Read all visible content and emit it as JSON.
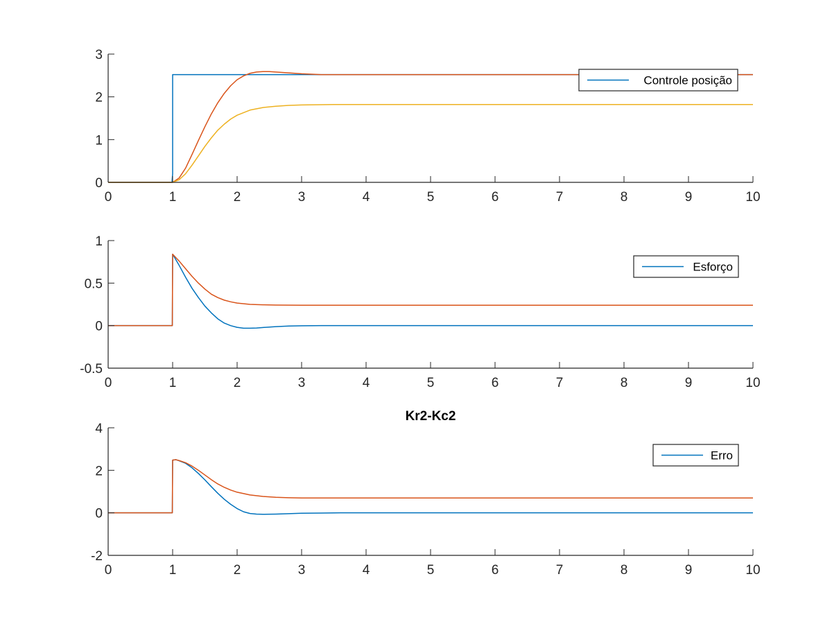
{
  "chart_data": [
    {
      "type": "line",
      "title": "",
      "xlim": [
        0,
        10
      ],
      "ylim": [
        0,
        3
      ],
      "xticks": [
        "0",
        "1",
        "2",
        "3",
        "4",
        "5",
        "6",
        "7",
        "8",
        "9",
        "10"
      ],
      "yticks": [
        "0",
        "1",
        "2",
        "3"
      ],
      "legend": {
        "placement": "top-right",
        "entries": [
          "Controle posição"
        ]
      },
      "series": [
        {
          "name": "Controle posição",
          "color": "#0072BD",
          "x": [
            0,
            0.99,
            1.0,
            1.0,
            10
          ],
          "y": [
            0,
            0,
            0.2,
            2.52,
            2.52
          ]
        },
        {
          "color": "#D95319",
          "x": [
            0,
            1.0,
            1.1,
            1.2,
            1.3,
            1.4,
            1.5,
            1.6,
            1.7,
            1.8,
            1.9,
            2.0,
            2.1,
            2.2,
            2.3,
            2.4,
            2.5,
            2.6,
            2.8,
            3.0,
            3.3,
            3.6,
            4.0,
            10
          ],
          "y": [
            0,
            0,
            0.1,
            0.33,
            0.65,
            0.98,
            1.3,
            1.6,
            1.86,
            2.08,
            2.26,
            2.4,
            2.49,
            2.55,
            2.58,
            2.59,
            2.59,
            2.58,
            2.56,
            2.54,
            2.52,
            2.52,
            2.52,
            2.52
          ]
        },
        {
          "color": "#EDB120",
          "x": [
            0,
            1.0,
            1.1,
            1.2,
            1.3,
            1.4,
            1.5,
            1.6,
            1.7,
            1.8,
            1.9,
            2.0,
            2.2,
            2.4,
            2.6,
            2.8,
            3.0,
            3.5,
            4.0,
            10
          ],
          "y": [
            0,
            0,
            0.06,
            0.2,
            0.4,
            0.62,
            0.84,
            1.04,
            1.22,
            1.36,
            1.48,
            1.57,
            1.69,
            1.75,
            1.78,
            1.8,
            1.81,
            1.82,
            1.82,
            1.82
          ]
        }
      ]
    },
    {
      "type": "line",
      "title": "",
      "xlim": [
        0,
        10
      ],
      "ylim": [
        -0.5,
        1
      ],
      "xticks": [
        "0",
        "1",
        "2",
        "3",
        "4",
        "5",
        "6",
        "7",
        "8",
        "9",
        "10"
      ],
      "yticks": [
        "-0.5",
        "0",
        "0.5",
        "1"
      ],
      "legend": {
        "placement": "top-right",
        "entries": [
          "Esforço"
        ]
      },
      "series": [
        {
          "name": "Esforço",
          "color": "#0072BD",
          "x": [
            0,
            0.995,
            1.0,
            1.1,
            1.2,
            1.3,
            1.4,
            1.5,
            1.6,
            1.7,
            1.8,
            1.9,
            2.0,
            2.1,
            2.2,
            2.3,
            2.4,
            2.6,
            2.8,
            3.0,
            3.3,
            3.6,
            10
          ],
          "y": [
            0,
            0,
            0.84,
            0.71,
            0.57,
            0.44,
            0.33,
            0.23,
            0.15,
            0.08,
            0.03,
            0.0,
            -0.02,
            -0.03,
            -0.03,
            -0.028,
            -0.022,
            -0.012,
            -0.005,
            -0.002,
            0.0,
            0.0,
            0.0
          ]
        },
        {
          "color": "#D95319",
          "x": [
            0,
            0.995,
            1.0,
            1.1,
            1.2,
            1.3,
            1.4,
            1.5,
            1.6,
            1.7,
            1.8,
            1.9,
            2.0,
            2.2,
            2.4,
            2.6,
            2.8,
            3.0,
            3.5,
            4.0,
            10
          ],
          "y": [
            0,
            0,
            0.84,
            0.76,
            0.67,
            0.58,
            0.5,
            0.43,
            0.37,
            0.33,
            0.3,
            0.28,
            0.265,
            0.25,
            0.245,
            0.242,
            0.241,
            0.24,
            0.24,
            0.24,
            0.24
          ]
        }
      ]
    },
    {
      "type": "line",
      "title": "Kr2-Kc2",
      "xlim": [
        0,
        10
      ],
      "ylim": [
        -2,
        4
      ],
      "xticks": [
        "0",
        "1",
        "2",
        "3",
        "4",
        "5",
        "6",
        "7",
        "8",
        "9",
        "10"
      ],
      "yticks": [
        "-2",
        "0",
        "2",
        "4"
      ],
      "legend": {
        "placement": "top-right",
        "entries": [
          "Erro"
        ]
      },
      "series": [
        {
          "name": "Erro",
          "color": "#0072BD",
          "x": [
            0,
            0.995,
            1.0,
            1.05,
            1.1,
            1.2,
            1.3,
            1.4,
            1.5,
            1.6,
            1.7,
            1.8,
            1.9,
            2.0,
            2.1,
            2.2,
            2.3,
            2.4,
            2.6,
            2.8,
            3.0,
            3.3,
            3.6,
            4.0,
            10
          ],
          "y": [
            0,
            0,
            2.48,
            2.5,
            2.45,
            2.33,
            2.12,
            1.85,
            1.55,
            1.23,
            0.92,
            0.64,
            0.4,
            0.2,
            0.05,
            -0.03,
            -0.06,
            -0.07,
            -0.06,
            -0.04,
            -0.02,
            -0.01,
            0.0,
            0.0,
            0.0
          ]
        },
        {
          "color": "#D95319",
          "x": [
            0,
            0.995,
            1.0,
            1.05,
            1.1,
            1.2,
            1.3,
            1.4,
            1.5,
            1.6,
            1.7,
            1.8,
            1.9,
            2.0,
            2.2,
            2.4,
            2.6,
            2.8,
            3.0,
            3.5,
            4.0,
            10
          ],
          "y": [
            0,
            0,
            2.48,
            2.5,
            2.46,
            2.36,
            2.2,
            2.0,
            1.78,
            1.56,
            1.36,
            1.2,
            1.07,
            0.97,
            0.84,
            0.77,
            0.73,
            0.71,
            0.7,
            0.7,
            0.7,
            0.7
          ]
        }
      ]
    }
  ]
}
